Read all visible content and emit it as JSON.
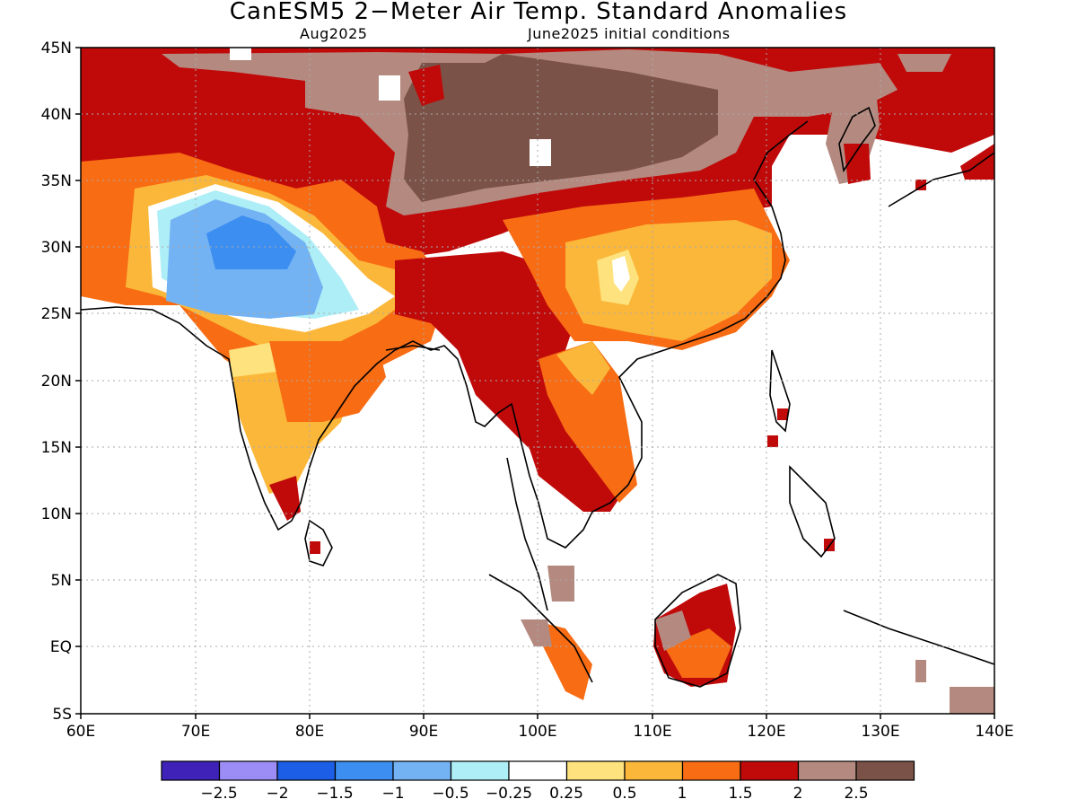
{
  "header": {
    "title": "CanESM5 2−Meter Air Temp. Standard Anomalies",
    "valid_month": "Aug2025",
    "init_conditions": "June2025 initial conditions"
  },
  "axes": {
    "lat_labels": [
      "45N",
      "40N",
      "35N",
      "30N",
      "25N",
      "20N",
      "15N",
      "10N",
      "5N",
      "EQ",
      "5S"
    ],
    "lon_labels": [
      "60E",
      "70E",
      "80E",
      "90E",
      "100E",
      "110E",
      "120E",
      "130E",
      "140E"
    ]
  },
  "legend": {
    "colors": [
      "#3f22b7",
      "#9b8cf6",
      "#1c5fe6",
      "#3c8ef0",
      "#73b3f3",
      "#aeeef6",
      "#ffffff",
      "#fde27d",
      "#fbb73a",
      "#f86c14",
      "#c00a0a",
      "#b48a80",
      "#7a5247"
    ],
    "labels": [
      "−2.5",
      "−2",
      "−1.5",
      "−1",
      "−0.5",
      "−0.25",
      "0.25",
      "0.5",
      "1",
      "1.5",
      "2",
      "2.5"
    ]
  },
  "colors": {
    "gridline": "#aaaaaa",
    "coast": "#000000"
  }
}
